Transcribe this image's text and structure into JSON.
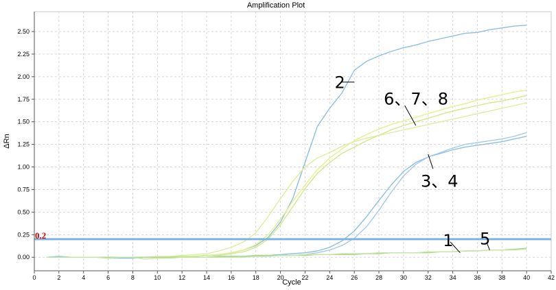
{
  "chart_data": {
    "type": "line",
    "title": "Amplification Plot",
    "xlabel": "Cycle",
    "ylabel": "ΔRn",
    "xlim": [
      0,
      42
    ],
    "ylim": [
      -0.15,
      2.72
    ],
    "xticks": [
      "0",
      "2",
      "4",
      "6",
      "8",
      "10",
      "12",
      "14",
      "16",
      "18",
      "20",
      "22",
      "24",
      "26",
      "28",
      "30",
      "32",
      "34",
      "36",
      "38",
      "40",
      "42"
    ],
    "yticks": [
      "0.00",
      "0.25",
      "0.50",
      "0.75",
      "1.00",
      "1.25",
      "1.50",
      "1.75",
      "2.00",
      "2.25",
      "2.50"
    ],
    "grid": true,
    "threshold": {
      "value": 0.2,
      "label": "0.2",
      "color": "#7fb2df"
    },
    "series": [
      {
        "color": "#8cbfe6",
        "x": [
          1,
          2,
          3,
          4,
          5,
          6,
          7,
          8,
          9,
          10,
          11,
          12,
          13,
          14,
          15,
          16,
          17,
          18,
          19,
          20,
          21,
          22,
          23,
          24,
          25,
          26,
          27,
          28,
          29,
          30,
          31,
          32,
          33,
          34,
          35,
          36,
          37,
          38,
          39,
          40
        ],
        "y": [
          0,
          0.01,
          0,
          0,
          0,
          -0.01,
          -0.01,
          -0.01,
          0,
          0,
          0,
          0.01,
          0.01,
          0.02,
          0.03,
          0.05,
          0.08,
          0.13,
          0.22,
          0.39,
          0.65,
          1.05,
          1.45,
          1.65,
          1.82,
          2.07,
          2.17,
          2.23,
          2.28,
          2.32,
          2.35,
          2.39,
          2.42,
          2.45,
          2.48,
          2.49,
          2.52,
          2.54,
          2.56,
          2.57
        ]
      },
      {
        "color": "#e0ec9e",
        "x": [
          1,
          2,
          3,
          4,
          5,
          6,
          7,
          8,
          9,
          10,
          11,
          12,
          13,
          14,
          15,
          16,
          17,
          18,
          19,
          20,
          21,
          22,
          23,
          24,
          25,
          26,
          27,
          28,
          29,
          30,
          31,
          32,
          33,
          34,
          35,
          36,
          37,
          38,
          39,
          40
        ],
        "y": [
          0,
          0,
          0,
          0,
          0,
          -0.01,
          0,
          0,
          0,
          0.01,
          0.01,
          0.02,
          0.03,
          0.04,
          0.07,
          0.11,
          0.17,
          0.27,
          0.45,
          0.65,
          0.84,
          1.0,
          1.1,
          1.16,
          1.23,
          1.28,
          1.32,
          1.35,
          1.38,
          1.41,
          1.44,
          1.47,
          1.5,
          1.53,
          1.56,
          1.59,
          1.62,
          1.65,
          1.68,
          1.71
        ]
      },
      {
        "color": "#e7f08c",
        "x": [
          1,
          2,
          3,
          4,
          5,
          6,
          7,
          8,
          9,
          10,
          11,
          12,
          13,
          14,
          15,
          16,
          17,
          18,
          19,
          20,
          21,
          22,
          23,
          24,
          25,
          26,
          27,
          28,
          29,
          30,
          31,
          32,
          33,
          34,
          35,
          36,
          37,
          38,
          39,
          40
        ],
        "y": [
          0,
          0,
          0,
          0,
          0,
          0,
          0,
          0,
          0,
          0,
          0,
          0.01,
          0.01,
          0.02,
          0.03,
          0.05,
          0.08,
          0.14,
          0.25,
          0.42,
          0.62,
          0.8,
          0.97,
          1.1,
          1.2,
          1.29,
          1.36,
          1.42,
          1.47,
          1.51,
          1.55,
          1.59,
          1.63,
          1.67,
          1.7,
          1.74,
          1.77,
          1.8,
          1.83,
          1.85
        ]
      },
      {
        "color": "#d2e889",
        "x": [
          1,
          2,
          3,
          4,
          5,
          6,
          7,
          8,
          9,
          10,
          11,
          12,
          13,
          14,
          15,
          16,
          17,
          18,
          19,
          20,
          21,
          22,
          23,
          24,
          25,
          26,
          27,
          28,
          29,
          30,
          31,
          32,
          33,
          34,
          35,
          36,
          37,
          38,
          39,
          40
        ],
        "y": [
          0,
          0,
          0,
          0,
          0,
          0,
          0,
          0,
          0,
          0,
          0,
          0.01,
          0.01,
          0.02,
          0.02,
          0.04,
          0.06,
          0.11,
          0.2,
          0.36,
          0.56,
          0.76,
          0.93,
          1.05,
          1.15,
          1.22,
          1.29,
          1.35,
          1.41,
          1.46,
          1.5,
          1.54,
          1.58,
          1.62,
          1.65,
          1.68,
          1.71,
          1.73,
          1.76,
          1.79
        ]
      },
      {
        "color": "#8cbfe6",
        "x": [
          1,
          2,
          3,
          4,
          5,
          6,
          7,
          8,
          9,
          10,
          11,
          12,
          13,
          14,
          15,
          16,
          17,
          18,
          19,
          20,
          21,
          22,
          23,
          24,
          25,
          26,
          27,
          28,
          29,
          30,
          31,
          32,
          33,
          34,
          35,
          36,
          37,
          38,
          39,
          40
        ],
        "y": [
          0,
          0,
          0,
          0,
          0,
          0,
          0,
          0,
          0,
          0,
          0,
          0,
          0,
          0,
          0.01,
          0.01,
          0.01,
          0.02,
          0.02,
          0.03,
          0.04,
          0.05,
          0.07,
          0.11,
          0.18,
          0.29,
          0.45,
          0.63,
          0.8,
          0.95,
          1.05,
          1.11,
          1.15,
          1.19,
          1.22,
          1.24,
          1.26,
          1.28,
          1.31,
          1.34
        ]
      },
      {
        "color": "#a8c8ee",
        "x": [
          1,
          2,
          3,
          4,
          5,
          6,
          7,
          8,
          9,
          10,
          11,
          12,
          13,
          14,
          15,
          16,
          17,
          18,
          19,
          20,
          21,
          22,
          23,
          24,
          25,
          26,
          27,
          28,
          29,
          30,
          31,
          32,
          33,
          34,
          35,
          36,
          37,
          38,
          39,
          40
        ],
        "y": [
          0,
          0,
          0,
          0,
          0,
          0,
          0,
          0,
          0,
          0,
          0,
          0,
          0,
          0,
          0,
          0,
          0.01,
          0.01,
          0.01,
          0.02,
          0.02,
          0.03,
          0.05,
          0.08,
          0.13,
          0.21,
          0.34,
          0.52,
          0.72,
          0.9,
          1.03,
          1.11,
          1.16,
          1.21,
          1.25,
          1.27,
          1.29,
          1.31,
          1.34,
          1.38
        ]
      },
      {
        "color": "#a9d68a",
        "x": [
          1,
          2,
          3,
          4,
          5,
          6,
          7,
          8,
          9,
          10,
          11,
          12,
          13,
          14,
          15,
          16,
          17,
          18,
          19,
          20,
          21,
          22,
          23,
          24,
          25,
          26,
          27,
          28,
          29,
          30,
          31,
          32,
          33,
          34,
          35,
          36,
          37,
          38,
          39,
          40
        ],
        "y": [
          0,
          0,
          0,
          0,
          0,
          0,
          0,
          0,
          0,
          0,
          0,
          0,
          0,
          0,
          0.01,
          0.01,
          0.01,
          0.02,
          0.02,
          0.02,
          0.02,
          0.02,
          0.03,
          0.03,
          0.03,
          0.03,
          0.04,
          0.04,
          0.05,
          0.05,
          0.05,
          0.05,
          0.06,
          0.06,
          0.07,
          0.07,
          0.08,
          0.08,
          0.09,
          0.1
        ]
      },
      {
        "color": "#c6e6a4",
        "x": [
          1,
          2,
          3,
          4,
          5,
          6,
          7,
          8,
          9,
          10,
          11,
          12,
          13,
          14,
          15,
          16,
          17,
          18,
          19,
          20,
          21,
          22,
          23,
          24,
          25,
          26,
          27,
          28,
          29,
          30,
          31,
          32,
          33,
          34,
          35,
          36,
          37,
          38,
          39,
          40
        ],
        "y": [
          0,
          0,
          0,
          0,
          0,
          -0.01,
          0,
          0,
          -0.02,
          -0.01,
          -0.01,
          0,
          0,
          0,
          0,
          0,
          0,
          0.01,
          0.01,
          0.02,
          0.02,
          0.03,
          0.03,
          0.03,
          0.04,
          0.04,
          0.04,
          0.05,
          0.05,
          0.05,
          0.05,
          0.06,
          0.06,
          0.06,
          0.07,
          0.07,
          0.08,
          0.08,
          0.08,
          0.09
        ]
      }
    ],
    "annotations": [
      {
        "text": "2",
        "x": 24.4,
        "y": 1.94,
        "line": [
          [
            25.0,
            1.94
          ],
          [
            26.0,
            1.94
          ]
        ]
      },
      {
        "text": "6、7、8",
        "x": 28.4,
        "y": 1.76,
        "line": [
          [
            30.1,
            1.68
          ],
          [
            31.0,
            1.46
          ]
        ]
      },
      {
        "text": "3、4",
        "x": 31.4,
        "y": 0.85,
        "line": [
          [
            32.4,
            0.98
          ],
          [
            32.0,
            1.14
          ]
        ]
      },
      {
        "text": "1",
        "x": 33.2,
        "y": 0.19,
        "line": [
          [
            33.8,
            0.17
          ],
          [
            34.6,
            0.05
          ]
        ]
      },
      {
        "text": "5",
        "x": 36.2,
        "y": 0.21,
        "line": [
          [
            36.8,
            0.15
          ],
          [
            37.0,
            0.08
          ]
        ]
      }
    ]
  }
}
